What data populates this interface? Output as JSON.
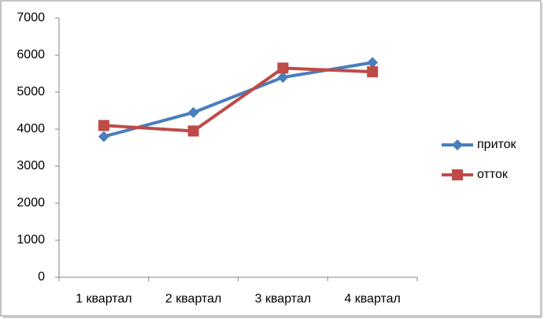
{
  "chart_data": {
    "type": "line",
    "categories": [
      "1 квартал",
      "2 квартал",
      "3 квартал",
      "4 квартал"
    ],
    "series": [
      {
        "name": "приток",
        "color": "#4a7ebb",
        "marker": "diamond",
        "values": [
          3800,
          4450,
          5400,
          5800
        ]
      },
      {
        "name": "отток",
        "color": "#be4b48",
        "marker": "square",
        "values": [
          4100,
          3950,
          5650,
          5550
        ]
      }
    ],
    "ylim": [
      0,
      7000
    ],
    "yticks": [
      0,
      1000,
      2000,
      3000,
      4000,
      5000,
      6000,
      7000
    ],
    "grid": false,
    "legend": "right"
  }
}
